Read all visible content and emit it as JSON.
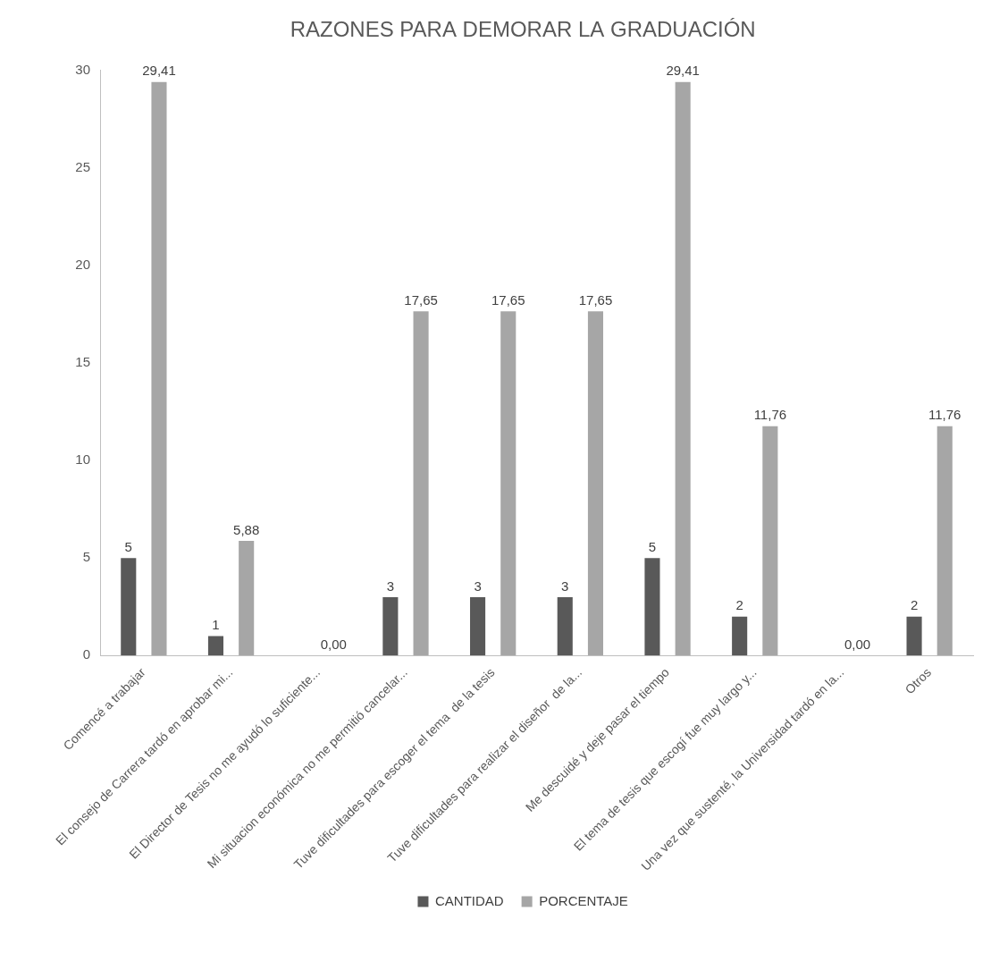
{
  "chart_data": {
    "type": "bar",
    "title": "RAZONES PARA DEMORAR LA GRADUACIÓN",
    "categories": [
      "Comencé a trabajar",
      "El consejo de Carrera tardó en aprobar mi...",
      "El Director de Tesis no me ayudó lo suficiente...",
      "Mi situacion económica no me permitió cancelar...",
      "Tuve dificultades para escoger el tema  de la tesis",
      "Tuve dificultades para realizar el diseñor  de la...",
      "Me descuidé y deje pasar el tiempo",
      "El tema de tesis que escogí fue muy largo y...",
      "Una vez que sustenté, la Universidad tardó en la...",
      "Otros"
    ],
    "series": [
      {
        "name": "CANTIDAD",
        "color": "#595959",
        "values": [
          5,
          1,
          0,
          3,
          3,
          3,
          5,
          2,
          0,
          2
        ],
        "value_labels": [
          "5",
          "1",
          null,
          "3",
          "3",
          "3",
          "5",
          "2",
          null,
          "2"
        ]
      },
      {
        "name": "PORCENTAJE",
        "color": "#a6a6a6",
        "values": [
          29.41,
          5.88,
          0,
          17.65,
          17.65,
          17.65,
          29.41,
          11.76,
          0,
          11.76
        ],
        "value_labels": [
          "29,41",
          "5,88",
          "0,00",
          "17,65",
          "17,65",
          "17,65",
          "29,41",
          "11,76",
          "0,00",
          "11,76"
        ]
      }
    ],
    "ylim": [
      0,
      30
    ],
    "yticks": [
      0,
      5,
      10,
      15,
      20,
      25,
      30
    ],
    "grid": false,
    "legend": "bottom",
    "data_labels": true
  }
}
